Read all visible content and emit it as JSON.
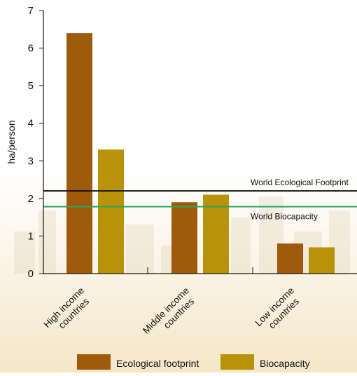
{
  "chart_data": {
    "type": "bar",
    "ylabel": "ha/person",
    "ylim": [
      0,
      7
    ],
    "yticks": [
      0,
      1,
      2,
      3,
      4,
      5,
      6,
      7
    ],
    "categories": [
      [
        "High income",
        "countries"
      ],
      [
        "Middle income",
        "countries"
      ],
      [
        "Low income",
        "countries"
      ]
    ],
    "series": [
      {
        "name": "Ecological footprint",
        "color": "#a05a0c",
        "values": [
          6.4,
          1.9,
          0.8
        ]
      },
      {
        "name": "Biocapacity",
        "color": "#b8930a",
        "values": [
          3.3,
          2.1,
          0.7
        ]
      }
    ],
    "reference_lines": [
      {
        "label": "World Ecological Footprint",
        "value": 2.2,
        "color": "#111111"
      },
      {
        "label": "World Biocapacity",
        "value": 1.78,
        "color": "#2aa85a"
      }
    ],
    "legend_position": "bottom"
  }
}
